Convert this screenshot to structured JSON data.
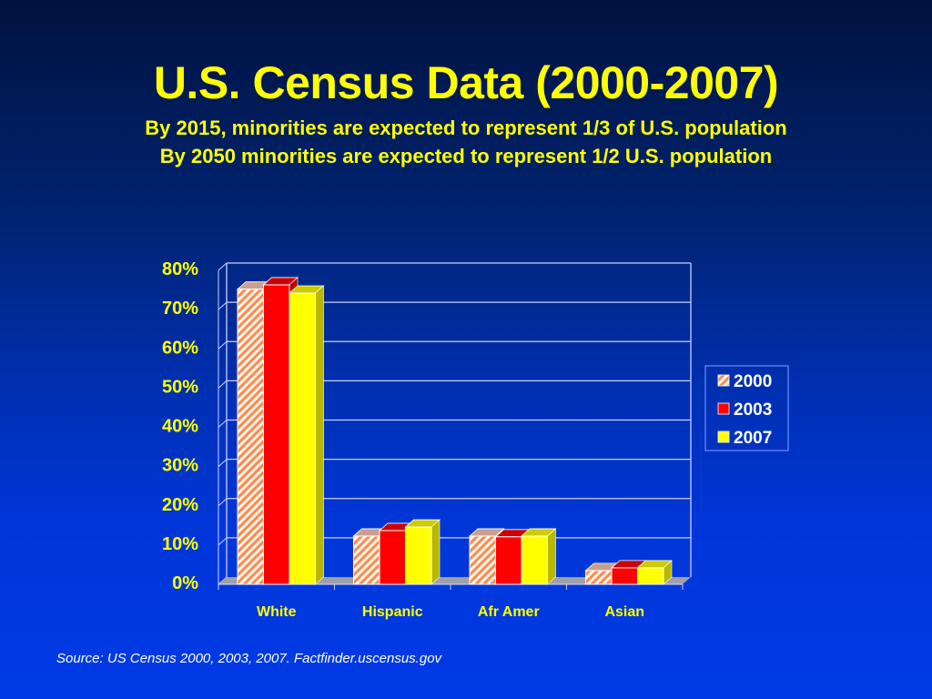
{
  "slide": {
    "title": "U.S. Census Data (2000-2007)",
    "subtitle_1": "By 2015, minorities are expected to represent 1/3 of U.S. population",
    "subtitle_2": "By 2050 minorities are expected to represent 1/2 U.S. population",
    "source": "Source: US Census 2000, 2003, 2007. Factfinder.uscensus.gov"
  },
  "colors": {
    "text_yellow": "#ffff00",
    "series_2000": "#ff8040",
    "series_2003": "#ff0000",
    "series_2007": "#ffff00",
    "floor": "#a0a0a8",
    "grid": "#c8d0ff"
  },
  "chart_data": {
    "type": "bar",
    "style": "3d-clustered",
    "title": "",
    "xlabel": "",
    "ylabel": "",
    "categories": [
      "White",
      "Hispanic",
      "Afr Amer",
      "Asian"
    ],
    "series": [
      {
        "name": "2000",
        "pattern": "hatched",
        "values": [
          75.2,
          12.3,
          12.3,
          3.5
        ]
      },
      {
        "name": "2003",
        "pattern": "solid",
        "values": [
          76.3,
          13.7,
          12.1,
          4.2
        ]
      },
      {
        "name": "2007",
        "pattern": "solid",
        "values": [
          74.2,
          14.6,
          12.3,
          4.2
        ]
      }
    ],
    "ylim": [
      0,
      80
    ],
    "yticks": [
      "0%",
      "10%",
      "20%",
      "30%",
      "40%",
      "50%",
      "60%",
      "70%",
      "80%"
    ],
    "grid": true,
    "legend": {
      "position": "right",
      "entries": [
        "2000",
        "2003",
        "2007"
      ]
    }
  }
}
